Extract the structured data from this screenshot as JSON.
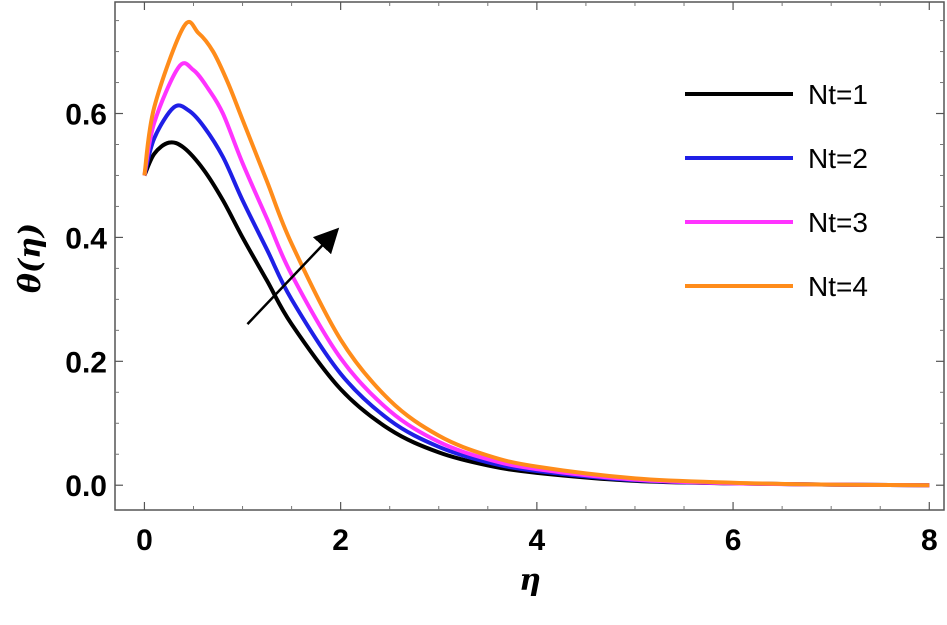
{
  "chart_data": {
    "type": "line",
    "title": "",
    "xlabel": "η",
    "ylabel": "θ(η)",
    "xlim": [
      -0.3,
      8.15
    ],
    "ylim": [
      -0.04,
      0.78
    ],
    "x_ticks": [
      {
        "value": 0,
        "label": "0"
      },
      {
        "value": 2,
        "label": "2"
      },
      {
        "value": 4,
        "label": "4"
      },
      {
        "value": 6,
        "label": "6"
      },
      {
        "value": 8,
        "label": "8"
      }
    ],
    "y_ticks": [
      {
        "value": 0.0,
        "label": "0.0"
      },
      {
        "value": 0.2,
        "label": "0.2"
      },
      {
        "value": 0.4,
        "label": "0.4"
      },
      {
        "value": 0.6,
        "label": "0.6"
      }
    ],
    "grid": false,
    "legend_position": "top-right",
    "series": [
      {
        "name": "Nt=1",
        "color": "#000000",
        "x": [
          0,
          0.1,
          0.25,
          0.4,
          0.6,
          0.8,
          1.0,
          1.25,
          1.5,
          2.0,
          2.5,
          3.0,
          3.5,
          4.0,
          5.0,
          6.0,
          7.0,
          8.0
        ],
        "y": [
          0.5,
          0.535,
          0.553,
          0.545,
          0.51,
          0.46,
          0.4,
          0.33,
          0.26,
          0.155,
          0.09,
          0.053,
          0.032,
          0.02,
          0.007,
          0.003,
          0.001,
          0.0
        ]
      },
      {
        "name": "Nt=2",
        "color": "#1f1fe6",
        "x": [
          0,
          0.1,
          0.3,
          0.45,
          0.6,
          0.8,
          1.0,
          1.25,
          1.5,
          2.0,
          2.5,
          3.0,
          3.5,
          4.0,
          5.0,
          6.0,
          7.0,
          8.0
        ],
        "y": [
          0.5,
          0.56,
          0.61,
          0.605,
          0.58,
          0.53,
          0.46,
          0.38,
          0.3,
          0.18,
          0.105,
          0.062,
          0.037,
          0.023,
          0.008,
          0.003,
          0.001,
          0.0
        ]
      },
      {
        "name": "Nt=3",
        "color": "#ff33ff",
        "x": [
          0,
          0.1,
          0.35,
          0.5,
          0.65,
          0.8,
          1.0,
          1.25,
          1.5,
          2.0,
          2.5,
          3.0,
          3.5,
          4.0,
          5.0,
          6.0,
          7.0,
          8.0
        ],
        "y": [
          0.5,
          0.585,
          0.675,
          0.67,
          0.64,
          0.6,
          0.52,
          0.43,
          0.34,
          0.205,
          0.12,
          0.07,
          0.042,
          0.026,
          0.009,
          0.003,
          0.001,
          0.0
        ]
      },
      {
        "name": "Nt=4",
        "color": "#ff8c1a",
        "x": [
          0,
          0.1,
          0.4,
          0.55,
          0.7,
          0.85,
          1.0,
          1.25,
          1.5,
          2.0,
          2.5,
          3.0,
          3.5,
          4.0,
          5.0,
          6.0,
          7.0,
          8.0
        ],
        "y": [
          0.5,
          0.61,
          0.74,
          0.73,
          0.7,
          0.65,
          0.59,
          0.49,
          0.39,
          0.235,
          0.137,
          0.08,
          0.048,
          0.03,
          0.011,
          0.004,
          0.001,
          0.0
        ]
      }
    ],
    "annotations": [
      {
        "type": "arrow",
        "from": [
          1.05,
          0.26
        ],
        "to": [
          1.95,
          0.41
        ]
      }
    ]
  }
}
